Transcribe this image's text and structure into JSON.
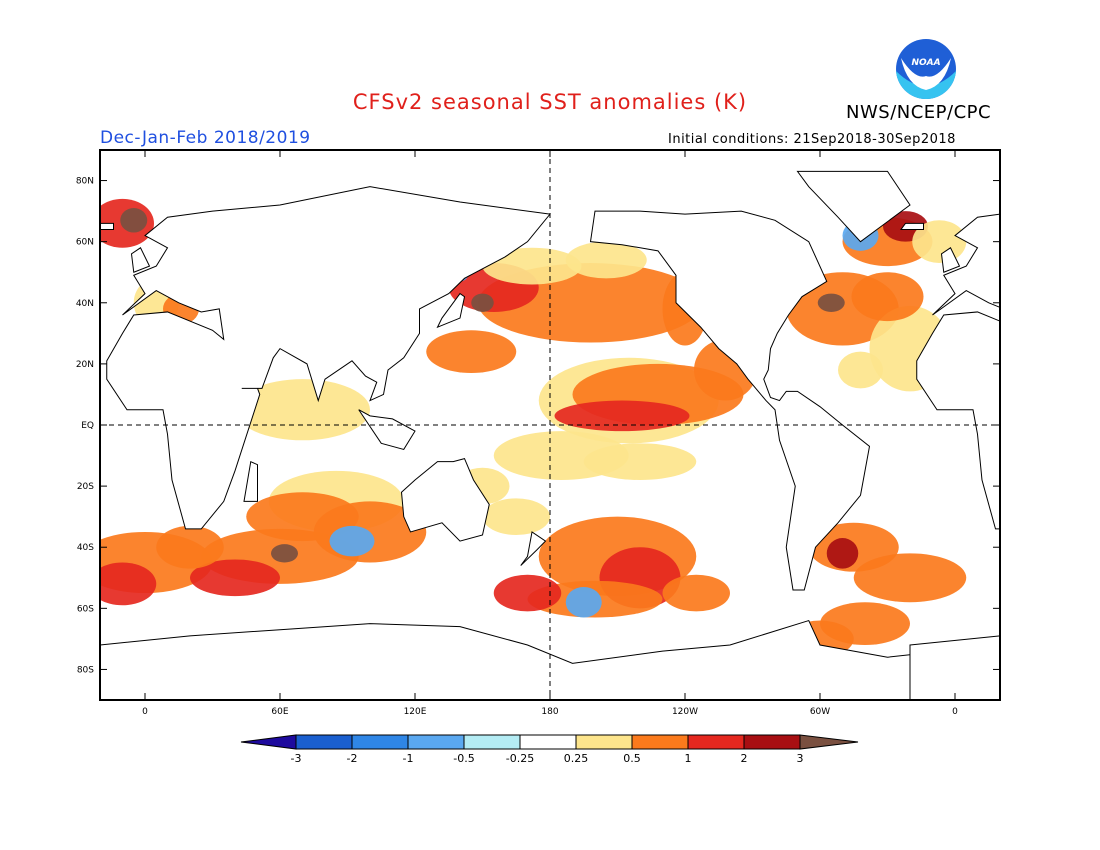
{
  "header": {
    "title": "CFSv2 seasonal SST anomalies (K)",
    "agency": "NWS/NCEP/CPC",
    "season": "Dec-Jan-Feb 2018/2019",
    "initial_conditions": "Initial conditions: 21Sep2018-30Sep2018",
    "logo_text": "NOAA"
  },
  "map": {
    "projection": "equirectangular",
    "lon_range": [
      -20,
      380
    ],
    "lat_range": [
      -90,
      90
    ],
    "lat_ticks": [
      {
        "lat": 80,
        "label": "80N"
      },
      {
        "lat": 60,
        "label": "60N"
      },
      {
        "lat": 40,
        "label": "40N"
      },
      {
        "lat": 20,
        "label": "20N"
      },
      {
        "lat": 0,
        "label": "EQ"
      },
      {
        "lat": -20,
        "label": "20S"
      },
      {
        "lat": -40,
        "label": "40S"
      },
      {
        "lat": -60,
        "label": "60S"
      },
      {
        "lat": -80,
        "label": "80S"
      }
    ],
    "lon_ticks": [
      {
        "lon": 0,
        "label": "0"
      },
      {
        "lon": 60,
        "label": "60E"
      },
      {
        "lon": 120,
        "label": "120E"
      },
      {
        "lon": 180,
        "label": "180"
      },
      {
        "lon": 240,
        "label": "120W"
      },
      {
        "lon": 300,
        "label": "60W"
      },
      {
        "lon": 360,
        "label": "0"
      }
    ],
    "reference_lines": {
      "equator": true,
      "dateline": true
    }
  },
  "colorbar": {
    "labels": [
      "-3",
      "-2",
      "-1",
      "-0.5",
      "-0.25",
      "0.25",
      "0.5",
      "1",
      "2",
      "3"
    ],
    "colors": [
      "#1e0a9e",
      "#1a5fcf",
      "#2f86e6",
      "#5aa8f0",
      "#b4ecf4",
      "#ffffff",
      "#fde58c",
      "#fb7a1c",
      "#e5281f",
      "#a80f12",
      "#7a5040"
    ]
  }
}
